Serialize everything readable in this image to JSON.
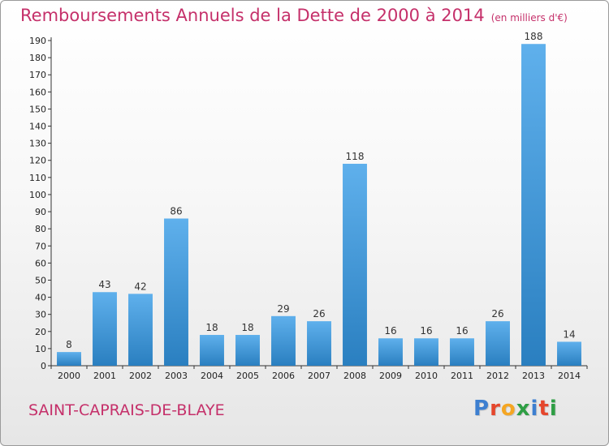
{
  "header": {
    "title": "Remboursements Annuels de la Dette de 2000 à 2014",
    "unit": "(en milliers d'€)"
  },
  "footer": {
    "commune": "SAINT-CAPRAIS-DE-BLAYE",
    "logo_letters": [
      "P",
      "r",
      "o",
      "x",
      "i",
      "t",
      "i"
    ],
    "logo_colors": [
      "#3d7fd0",
      "#e5462c",
      "#f5a623",
      "#2e9e44",
      "#3d7fd0",
      "#e5462c",
      "#2e9e44"
    ]
  },
  "chart_data": {
    "type": "bar",
    "categories": [
      "2000",
      "2001",
      "2002",
      "2003",
      "2004",
      "2005",
      "2006",
      "2007",
      "2008",
      "2009",
      "2010",
      "2011",
      "2012",
      "2013",
      "2014"
    ],
    "values": [
      8,
      43,
      42,
      86,
      18,
      18,
      29,
      26,
      118,
      16,
      16,
      16,
      26,
      188,
      14
    ],
    "ylim": [
      0,
      190
    ],
    "yticks": [
      0,
      10,
      20,
      30,
      40,
      50,
      60,
      70,
      80,
      90,
      100,
      110,
      120,
      130,
      140,
      150,
      160,
      170,
      180,
      190
    ],
    "grid": false,
    "bar_color_top": "#5fb0ec",
    "bar_color_bottom": "#2a7fc0"
  }
}
